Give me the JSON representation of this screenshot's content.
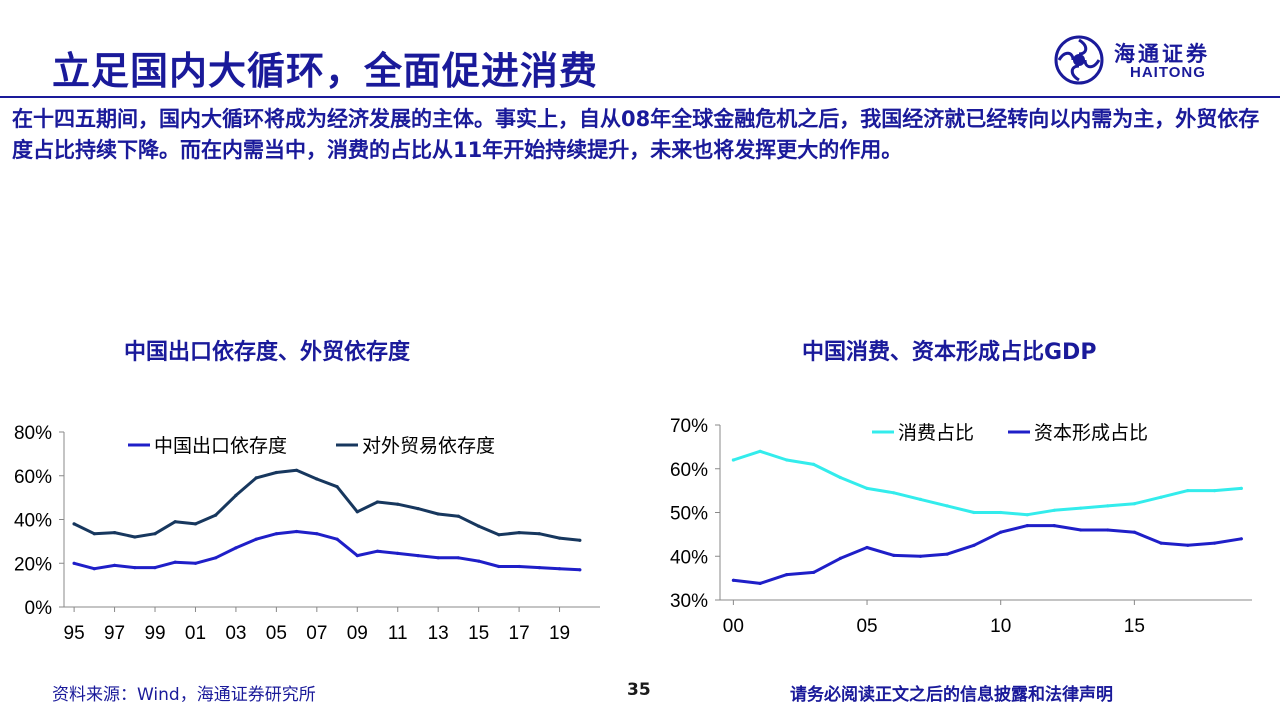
{
  "page": {
    "title": "立足国内大循环，全面促进消费",
    "intro": "在十四五期间，国内大循环将成为经济发展的主体。事实上，自从08年全球金融危机之后，我国经济就已经转向以内需为主，外贸依存度占比持续下降。而在内需当中，消费的占比从11年开始持续提升，未来也将发挥更大的作用。"
  },
  "logo": {
    "cn": "海通证券",
    "en": "HAITONG",
    "color": "#1a1a9a"
  },
  "footer": {
    "source": "资料来源：Wind，海通证券研究所",
    "page_number": "35",
    "disclaimer": "请务必阅读正文之后的信息披露和法律声明"
  },
  "chart_data": [
    {
      "type": "line",
      "title": "中国出口依存度、外贸依存度",
      "xlabel": "",
      "ylabel": "",
      "x": [
        1995,
        1996,
        1997,
        1998,
        1999,
        2000,
        2001,
        2002,
        2003,
        2004,
        2005,
        2006,
        2007,
        2008,
        2009,
        2010,
        2011,
        2012,
        2013,
        2014,
        2015,
        2016,
        2017,
        2018,
        2019,
        2020
      ],
      "x_tick_labels": [
        "95",
        "97",
        "99",
        "01",
        "03",
        "05",
        "07",
        "09",
        "11",
        "13",
        "15",
        "17",
        "19"
      ],
      "x_tick_values": [
        1995,
        1997,
        1999,
        2001,
        2003,
        2005,
        2007,
        2009,
        2011,
        2013,
        2015,
        2017,
        2019
      ],
      "xlim": [
        1994.5,
        2021
      ],
      "ylim": [
        0,
        80
      ],
      "y_ticks": [
        0,
        20,
        40,
        60,
        80
      ],
      "y_tick_labels": [
        "0%",
        "20%",
        "40%",
        "60%",
        "80%"
      ],
      "legend_position": "top",
      "grid": false,
      "series": [
        {
          "name": "中国出口依存度",
          "color": "#1f1fc8",
          "values": [
            20,
            17.5,
            19,
            18,
            18,
            20.5,
            20,
            22.5,
            27,
            31,
            33.5,
            34.5,
            33.5,
            31,
            23.5,
            25.5,
            24.5,
            23.5,
            22.5,
            22.5,
            21,
            18.5,
            18.5,
            18,
            17.5,
            17
          ]
        },
        {
          "name": "对外贸易依存度",
          "color": "#17375e",
          "values": [
            38,
            33.5,
            34,
            32,
            33.5,
            39,
            38,
            42,
            51,
            59,
            61.5,
            62.5,
            58.5,
            55,
            43.5,
            48,
            47,
            45,
            42.5,
            41.5,
            37,
            33,
            34,
            33.5,
            31.5,
            30.5
          ]
        }
      ]
    },
    {
      "type": "line",
      "title": "中国消费、资本形成占比GDP",
      "xlabel": "",
      "ylabel": "",
      "x": [
        2000,
        2001,
        2002,
        2003,
        2004,
        2005,
        2006,
        2007,
        2008,
        2009,
        2010,
        2011,
        2012,
        2013,
        2014,
        2015,
        2016,
        2017,
        2018,
        2019
      ],
      "x_tick_labels": [
        "00",
        "05",
        "10",
        "15"
      ],
      "x_tick_values": [
        2000,
        2005,
        2010,
        2015
      ],
      "xlim": [
        1999.5,
        2019.4
      ],
      "ylim": [
        30,
        70
      ],
      "y_ticks": [
        30,
        40,
        50,
        60,
        70
      ],
      "y_tick_labels": [
        "30%",
        "40%",
        "50%",
        "60%",
        "70%"
      ],
      "legend_position": "top",
      "grid": false,
      "series": [
        {
          "name": "消费占比",
          "color": "#33ecec",
          "values": [
            62,
            64,
            62,
            61,
            58,
            55.5,
            54.5,
            53,
            51.5,
            50,
            50,
            49.5,
            50.5,
            51,
            51.5,
            52,
            53.5,
            55,
            55,
            55.5
          ]
        },
        {
          "name": "资本形成占比",
          "color": "#1f1fc8",
          "values": [
            34.5,
            33.8,
            35.8,
            36.3,
            39.5,
            42,
            40.2,
            40,
            40.5,
            42.5,
            45.5,
            47,
            47,
            46,
            46,
            45.5,
            43,
            42.5,
            43,
            44
          ]
        }
      ]
    }
  ]
}
